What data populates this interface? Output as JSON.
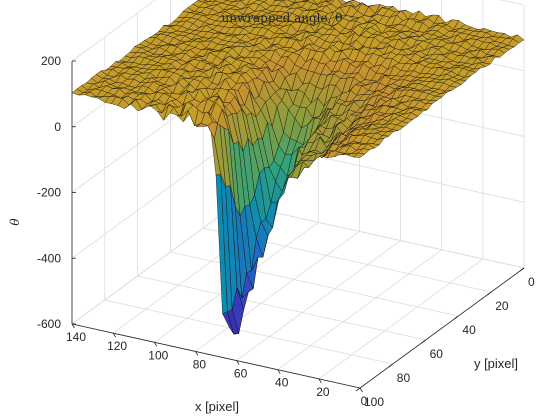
{
  "chart_data": {
    "type": "surface",
    "title": "unwrapped angle, θ",
    "xlabel": "x [pixel]",
    "ylabel": "y [pixel]",
    "zlabel": "θ",
    "xlim": [
      0,
      140
    ],
    "ylim": [
      0,
      100
    ],
    "zlim": [
      -600,
      200
    ],
    "x_ticks": [
      0,
      20,
      40,
      60,
      80,
      100,
      120,
      140
    ],
    "y_ticks": [
      0,
      20,
      40,
      60,
      80,
      100
    ],
    "z_ticks": [
      -600,
      -400,
      -200,
      0,
      200
    ],
    "x_tick_labels": [
      "0",
      "20",
      "40",
      "60",
      "80",
      "100",
      "120",
      "140"
    ],
    "y_tick_labels": [
      "0",
      "20",
      "40",
      "60",
      "80",
      "100"
    ],
    "z_tick_labels": [
      "-600",
      "-400",
      "-200",
      "0",
      "200"
    ],
    "grid": true,
    "colormap": "parula",
    "surface_description": "plateau near 100 with a deep trough reaching about -600 near x≈60-70, y≈40-100",
    "plateau_level": 100,
    "trough_min": -600,
    "trough_center_x": 65
  }
}
